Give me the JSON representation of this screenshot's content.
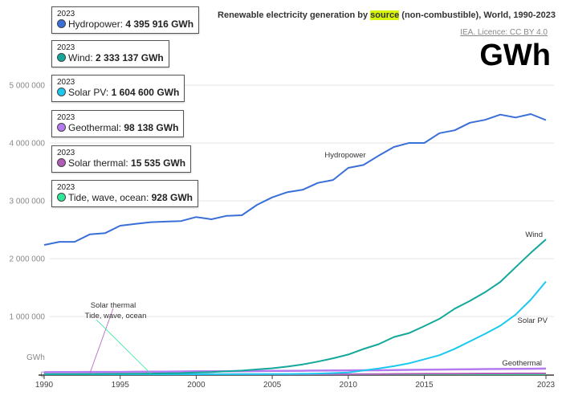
{
  "header": {
    "title_pre": "Renewable electricity generation by ",
    "title_highlight": "source",
    "title_post": " (non-combustible), World, 1990-2023",
    "licence": "IEA. Licence: CC BY 4.0",
    "unit_big": "GWh"
  },
  "tooltips": [
    {
      "year": "2023",
      "name": "Hydropower",
      "value": "4 395 916 GWh",
      "color": "#3a6fd8"
    },
    {
      "year": "2023",
      "name": "Wind",
      "value": "2 333 137 GWh",
      "color": "#13a89a"
    },
    {
      "year": "2023",
      "name": "Solar PV",
      "value": "1 604 600 GWh",
      "color": "#1ac8f0"
    },
    {
      "year": "2023",
      "name": "Geothermal",
      "value": "98 138 GWh",
      "color": "#b57af0"
    },
    {
      "year": "2023",
      "name": "Solar thermal",
      "value": "15 535 GWh",
      "color": "#b05cb8"
    },
    {
      "year": "2023",
      "name": "Tide, wave, ocean",
      "value": "928 GWh",
      "color": "#2ee89a"
    }
  ],
  "chart_data": {
    "type": "line",
    "title": "Renewable electricity generation by source (non-combustible), World, 1990-2023",
    "xlabel": "",
    "ylabel": "GWh",
    "xlim": [
      1990,
      2023
    ],
    "ylim": [
      0,
      5000000
    ],
    "grid": true,
    "x_ticks": [
      "1990",
      "1995",
      "2000",
      "2005",
      "2010",
      "2015",
      "2023"
    ],
    "y_ticks": [
      "0",
      "1 000 000",
      "2 000 000",
      "3 000 000",
      "4 000 000",
      "5 000 000"
    ],
    "x": [
      1990,
      1991,
      1992,
      1993,
      1994,
      1995,
      1996,
      1997,
      1998,
      1999,
      2000,
      2001,
      2002,
      2003,
      2004,
      2005,
      2006,
      2007,
      2008,
      2009,
      2010,
      2011,
      2012,
      2013,
      2014,
      2015,
      2016,
      2017,
      2018,
      2019,
      2020,
      2021,
      2022,
      2023
    ],
    "series": [
      {
        "name": "Hydropower",
        "color": "#3a6fd8",
        "label": "Hydropower",
        "values": [
          2236000,
          2290000,
          2290000,
          2420000,
          2440000,
          2570000,
          2600000,
          2630000,
          2640000,
          2650000,
          2720000,
          2680000,
          2740000,
          2750000,
          2930000,
          3060000,
          3150000,
          3190000,
          3310000,
          3360000,
          3570000,
          3620000,
          3780000,
          3930000,
          4000000,
          4000000,
          4170000,
          4220000,
          4350000,
          4400000,
          4490000,
          4440000,
          4500000,
          4395916
        ]
      },
      {
        "name": "Wind",
        "color": "#13a89a",
        "label": "Wind",
        "values": [
          3900,
          4300,
          4800,
          5700,
          7200,
          8400,
          9700,
          12100,
          16000,
          21400,
          31400,
          38400,
          52300,
          63400,
          85300,
          104400,
          133000,
          170600,
          220000,
          276000,
          342000,
          437000,
          521000,
          645000,
          712000,
          834000,
          960000,
          1135000,
          1270000,
          1420000,
          1597000,
          1850000,
          2100000,
          2333137
        ]
      },
      {
        "name": "Solar PV",
        "color": "#1ac8f0",
        "label": "Solar PV",
        "values": [
          90,
          100,
          120,
          150,
          200,
          250,
          300,
          400,
          500,
          700,
          1000,
          1400,
          2000,
          2700,
          3900,
          4900,
          6200,
          7900,
          12800,
          20900,
          32000,
          65000,
          100000,
          140000,
          190000,
          260000,
          330000,
          440000,
          570000,
          700000,
          840000,
          1030000,
          1290000,
          1604600
        ]
      },
      {
        "name": "Geothermal",
        "color": "#b57af0",
        "label": "Geothermal",
        "values": [
          36000,
          37000,
          39000,
          40000,
          40500,
          39800,
          42500,
          43800,
          46000,
          49000,
          52000,
          52000,
          52000,
          54000,
          56000,
          58000,
          59000,
          61000,
          64000,
          66000,
          68000,
          69000,
          70000,
          72000,
          76000,
          80000,
          82000,
          85000,
          88000,
          90000,
          92000,
          95000,
          96500,
          98138
        ]
      },
      {
        "name": "Solar thermal",
        "color": "#b05cb8",
        "label": "Solar thermal",
        "values": [
          660,
          890,
          900,
          900,
          820,
          820,
          860,
          890,
          980,
          900,
          800,
          800,
          800,
          800,
          800,
          800,
          800,
          800,
          950,
          1200,
          1650,
          2900,
          4800,
          6300,
          8800,
          9600,
          10600,
          11200,
          12300,
          13300,
          13900,
          14600,
          15000,
          15535
        ]
      },
      {
        "name": "Tide, wave, ocean",
        "color": "#2ee89a",
        "label": "Tide, wave, ocean",
        "values": [
          536,
          561,
          561,
          549,
          552,
          552,
          558,
          556,
          560,
          557,
          558,
          555,
          556,
          556,
          557,
          555,
          556,
          548,
          557,
          529,
          556,
          633,
          1000,
          1000,
          1000,
          1000,
          1000,
          1000,
          1000,
          1000,
          1000,
          1000,
          950,
          928
        ]
      }
    ]
  }
}
